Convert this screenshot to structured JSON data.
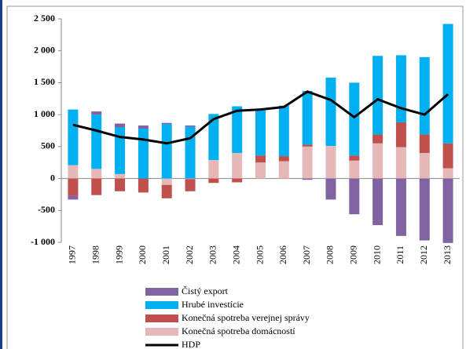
{
  "chart_data": {
    "type": "stacked-bar-line",
    "categories": [
      "1997",
      "1998",
      "1999",
      "2000",
      "2001",
      "2002",
      "2003",
      "2004",
      "2005",
      "2006",
      "2007",
      "2008",
      "2009",
      "2010",
      "2011",
      "2012",
      "2013"
    ],
    "series": [
      {
        "name": "Čistý export",
        "color": "#8064a2",
        "values": [
          -60,
          50,
          60,
          50,
          20,
          20,
          0,
          0,
          0,
          0,
          -20,
          -330,
          -560,
          -730,
          -900,
          -970,
          -1010
        ]
      },
      {
        "name": "Hrubé investície",
        "color": "#00b0f0",
        "values": [
          870,
          850,
          730,
          780,
          850,
          810,
          720,
          730,
          720,
          790,
          840,
          1070,
          1140,
          1230,
          1050,
          1210,
          1870
        ]
      },
      {
        "name": "Konečná spotreba verejnej správy",
        "color": "#c0504d",
        "values": [
          -270,
          -260,
          -200,
          -220,
          -210,
          -190,
          -70,
          -60,
          110,
          80,
          30,
          0,
          80,
          140,
          390,
          290,
          390
        ]
      },
      {
        "name": "Konečná spotreba domácností",
        "color": "#e6b9b8",
        "values": [
          210,
          150,
          70,
          0,
          -100,
          -10,
          290,
          400,
          250,
          270,
          500,
          510,
          280,
          550,
          490,
          400,
          160
        ]
      },
      {
        "name": "HDP",
        "color": "#000000",
        "type": "line",
        "values": [
          840,
          750,
          650,
          610,
          550,
          630,
          930,
          1060,
          1080,
          1120,
          1360,
          1230,
          960,
          1240,
          1100,
          1000,
          1320
        ]
      }
    ],
    "ylim": [
      -1000,
      2500
    ],
    "yticks": [
      {
        "value": -1000,
        "label": "-1 000"
      },
      -500,
      0,
      500,
      {
        "value": 1000,
        "label": "1 000"
      },
      {
        "value": 1500,
        "label": "1 500"
      },
      {
        "value": 2000,
        "label": "2 000"
      },
      {
        "value": 2500,
        "label": "2 500"
      }
    ]
  }
}
